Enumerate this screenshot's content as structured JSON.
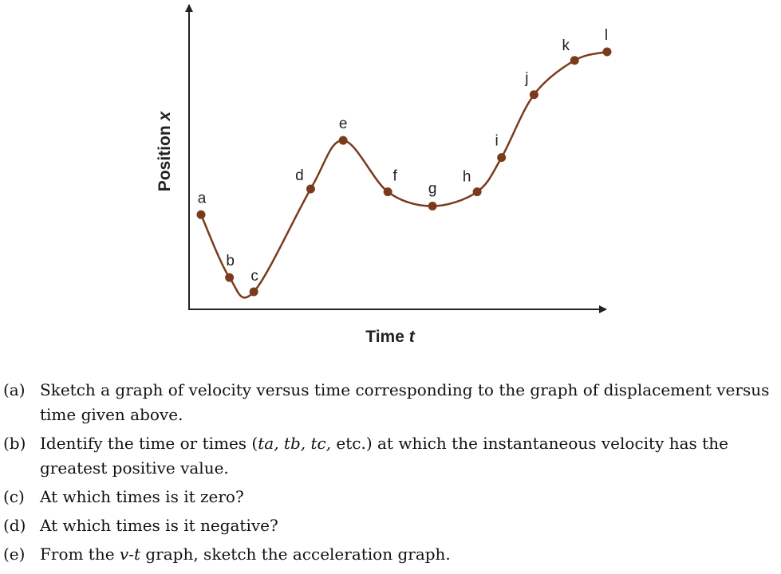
{
  "chart_data": {
    "type": "line",
    "xlabel": "Time",
    "xlabel_var": "t",
    "ylabel": "Position",
    "ylabel_var": "x",
    "grid": false,
    "color": "#7a3b1c",
    "point_color": "#7a3b1c",
    "points": [
      {
        "label": "a",
        "t": 0.0,
        "x": 0.39
      },
      {
        "label": "b",
        "t": 0.07,
        "x": 0.17
      },
      {
        "label": "c",
        "t": 0.13,
        "x": 0.12
      },
      {
        "label": "d",
        "t": 0.27,
        "x": 0.48
      },
      {
        "label": "e",
        "t": 0.35,
        "x": 0.65
      },
      {
        "label": "f",
        "t": 0.46,
        "x": 0.47
      },
      {
        "label": "g",
        "t": 0.57,
        "x": 0.42
      },
      {
        "label": "h",
        "t": 0.68,
        "x": 0.47
      },
      {
        "label": "i",
        "t": 0.74,
        "x": 0.59
      },
      {
        "label": "j",
        "t": 0.82,
        "x": 0.81
      },
      {
        "label": "k",
        "t": 0.92,
        "x": 0.93
      },
      {
        "label": "l",
        "t": 1.0,
        "x": 0.96
      }
    ]
  },
  "questions": [
    {
      "tag": "(a)",
      "text": "Sketch a graph of velocity versus time corresponding to the graph of displacement versus time given above."
    },
    {
      "tag": "(b)",
      "text_pre": "Identify the time or times (",
      "t_vars": "ta, tb, tc,",
      "text_post": " etc.) at which the instantaneous velocity has the greatest positive value."
    },
    {
      "tag": "(c)",
      "text": "At which times is it zero?"
    },
    {
      "tag": "(d)",
      "text": "At which times is it negative?"
    },
    {
      "tag": "(e)",
      "text_pre": "From the ",
      "var": "v-t",
      "text_post": " graph, sketch the acceleration graph."
    }
  ]
}
